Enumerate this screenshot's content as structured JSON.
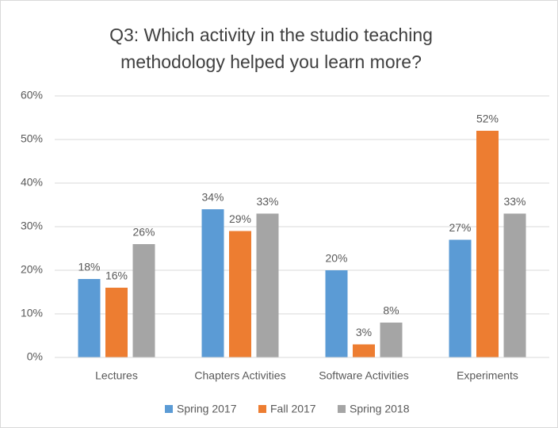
{
  "chart_data": {
    "type": "bar",
    "title": [
      "Q3: Which activity in the studio teaching",
      "methodology helped you learn more?"
    ],
    "categories": [
      "Lectures",
      "Chapters Activities",
      "Software Activities",
      "Experiments"
    ],
    "series": [
      {
        "name": "Spring 2017",
        "color": "#5b9bd5",
        "values": [
          18,
          34,
          20,
          27
        ],
        "value_labels": [
          "18%",
          "34%",
          "20%",
          "27%"
        ]
      },
      {
        "name": "Fall 2017",
        "color": "#ed7d31",
        "values": [
          16,
          29,
          3,
          52
        ],
        "value_labels": [
          "16%",
          "29%",
          "3%",
          "52%"
        ]
      },
      {
        "name": "Spring 2018",
        "color": "#a5a5a5",
        "values": [
          26,
          33,
          8,
          33
        ],
        "value_labels": [
          "26%",
          "33%",
          "8%",
          "33%"
        ]
      }
    ],
    "ylim": [
      0,
      60
    ],
    "yticks": [
      {
        "value": 0,
        "label": "0%"
      },
      {
        "value": 10,
        "label": "10%"
      },
      {
        "value": 20,
        "label": "20%"
      },
      {
        "value": 30,
        "label": "30%"
      },
      {
        "value": 40,
        "label": "40%"
      },
      {
        "value": 50,
        "label": "50%"
      },
      {
        "value": 60,
        "label": "60%"
      }
    ],
    "grid": true,
    "legend": "bottom"
  }
}
